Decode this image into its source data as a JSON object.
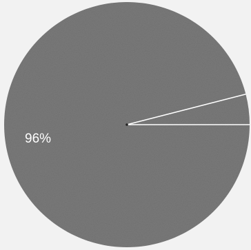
{
  "chart_data": {
    "type": "pie",
    "slices": [
      {
        "value": 96,
        "label": "96%",
        "color": "#7a7a7a"
      },
      {
        "value": 4,
        "label": "",
        "color": "#7a7a7a"
      }
    ],
    "title": "",
    "legend": "none"
  },
  "colors": {
    "background": "#f2f2f2",
    "slice_divider": "#ffffff"
  }
}
